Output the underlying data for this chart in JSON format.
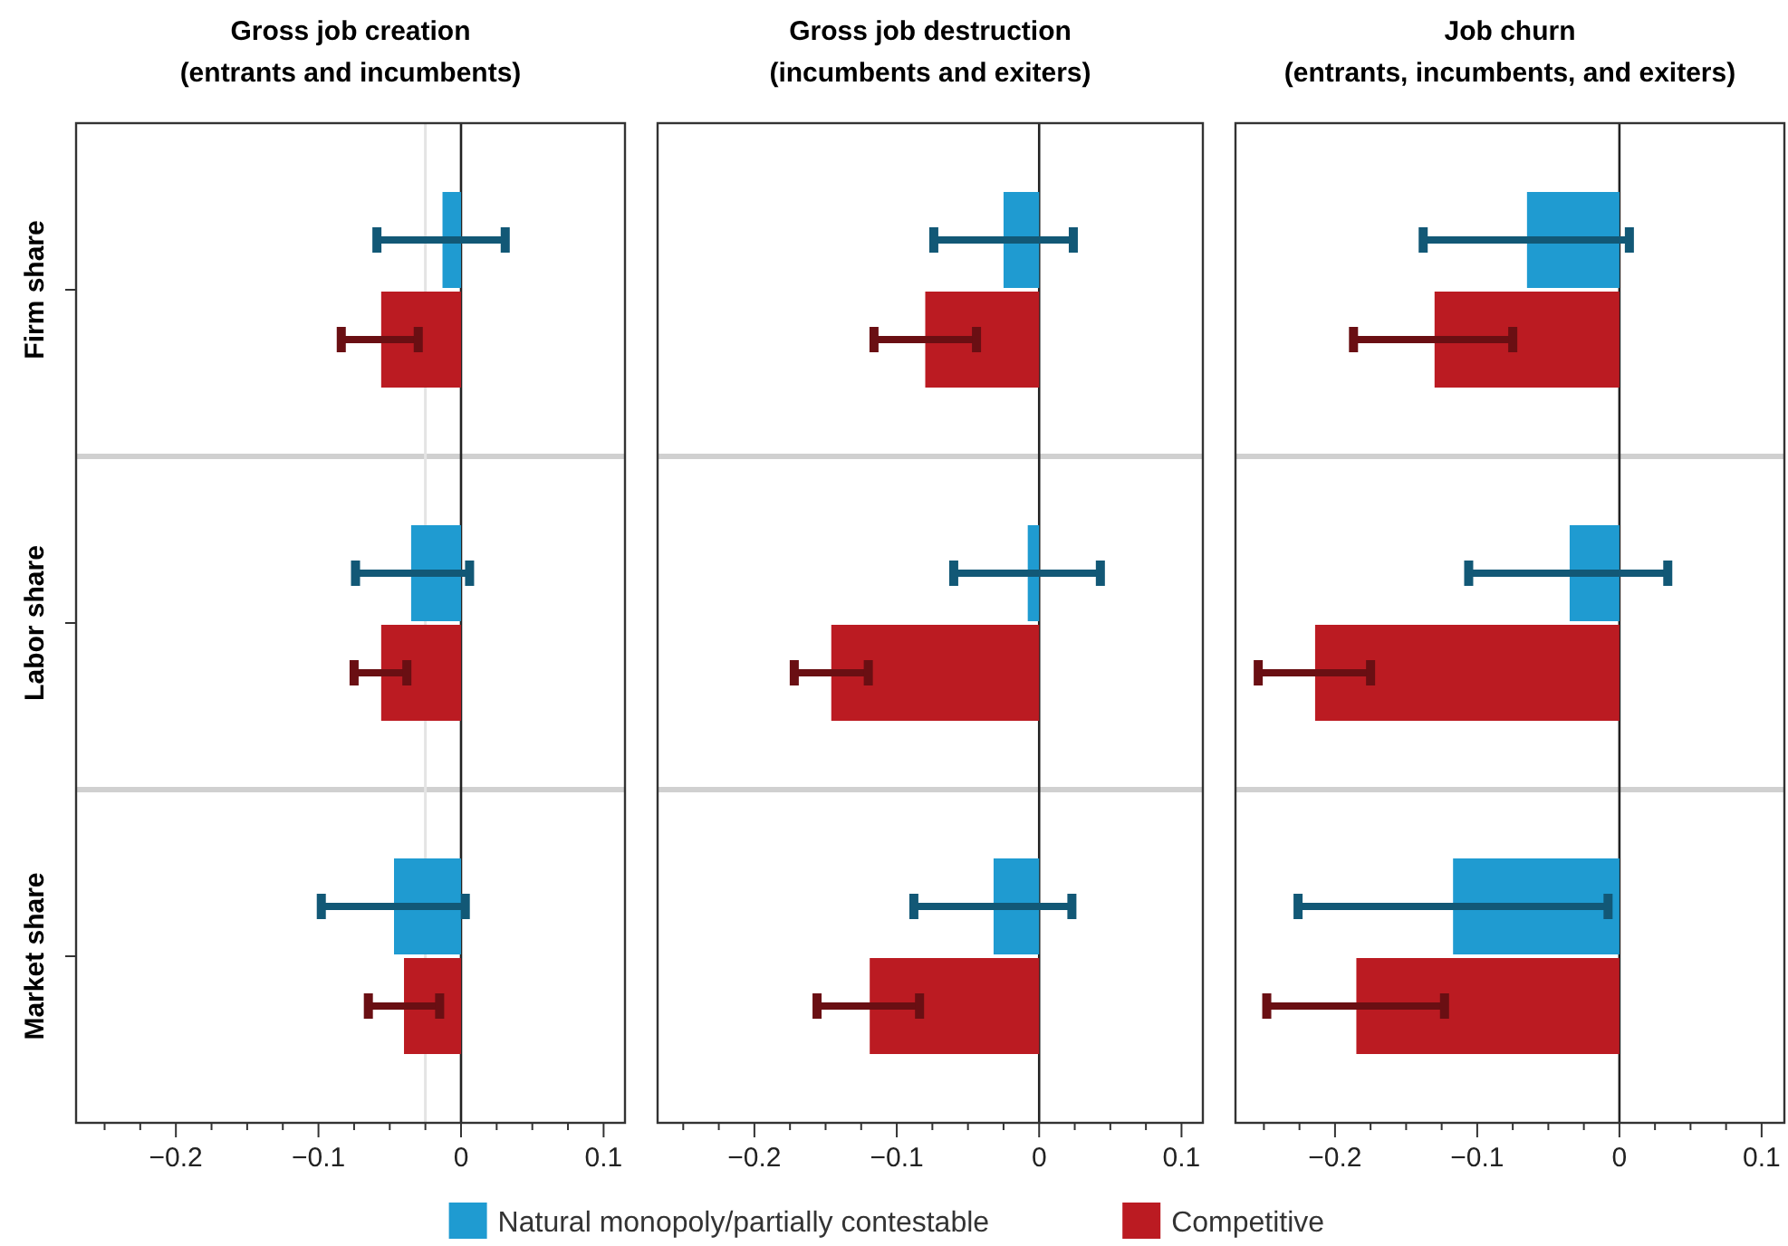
{
  "chart_data": [
    {
      "type": "bar",
      "orientation": "horizontal",
      "title": "Gross job creation",
      "subtitle": "(entrants and incumbents)",
      "categories": [
        "Firm share",
        "Labor share",
        "Market share"
      ],
      "xlim": [
        -0.27,
        0.115
      ],
      "xticks": [
        {
          "value": -0.25,
          "label": null
        },
        {
          "value": -0.225,
          "label": null
        },
        {
          "value": -0.2,
          "label": "−0.2"
        },
        {
          "value": -0.175,
          "label": null
        },
        {
          "value": -0.15,
          "label": null
        },
        {
          "value": -0.125,
          "label": null
        },
        {
          "value": -0.1,
          "label": "−0.1"
        },
        {
          "value": -0.075,
          "label": null
        },
        {
          "value": -0.05,
          "label": null
        },
        {
          "value": -0.025,
          "label": null
        },
        {
          "value": 0,
          "label": "0"
        },
        {
          "value": 0.025,
          "label": null
        },
        {
          "value": 0.05,
          "label": null
        },
        {
          "value": 0.075,
          "label": null
        },
        {
          "value": 0.1,
          "label": "0.1"
        }
      ],
      "grid": "y",
      "legend": "bottom",
      "ref_lines": [
        {
          "axis": "x",
          "value": -0.025,
          "color": "#e4e4e4"
        },
        {
          "axis": "x",
          "value": 0,
          "color": "#222222"
        }
      ],
      "series": [
        {
          "name": "Natural monopoly/partially contestable",
          "color": "#1f9bd1",
          "values": [
            -0.013,
            -0.035,
            -0.047
          ],
          "errors": [
            [
              -0.059,
              0.031
            ],
            [
              -0.074,
              0.006
            ],
            [
              -0.098,
              0.003
            ]
          ]
        },
        {
          "name": "Competitive",
          "color": "#bb1b22",
          "values": [
            -0.056,
            -0.056,
            -0.04
          ],
          "errors": [
            [
              -0.084,
              -0.03
            ],
            [
              -0.075,
              -0.038
            ],
            [
              -0.065,
              -0.015
            ]
          ]
        }
      ]
    },
    {
      "type": "bar",
      "orientation": "horizontal",
      "title": "Gross job destruction",
      "subtitle": "(incumbents and exiters)",
      "categories": [
        null,
        null,
        null
      ],
      "xlim": [
        -0.268,
        0.115
      ],
      "xticks": [
        {
          "value": -0.25,
          "label": null
        },
        {
          "value": -0.225,
          "label": null
        },
        {
          "value": -0.2,
          "label": "−0.2"
        },
        {
          "value": -0.175,
          "label": null
        },
        {
          "value": -0.15,
          "label": null
        },
        {
          "value": -0.125,
          "label": null
        },
        {
          "value": -0.1,
          "label": "−0.1"
        },
        {
          "value": -0.075,
          "label": null
        },
        {
          "value": -0.05,
          "label": null
        },
        {
          "value": -0.025,
          "label": null
        },
        {
          "value": 0,
          "label": "0"
        },
        {
          "value": 0.025,
          "label": null
        },
        {
          "value": 0.05,
          "label": null
        },
        {
          "value": 0.075,
          "label": null
        },
        {
          "value": 0.1,
          "label": "0.1"
        }
      ],
      "grid": "y",
      "tick_labels": "x",
      "ref_lines": [
        {
          "axis": "x",
          "value": 0,
          "color": "#222222"
        }
      ],
      "series": [
        {
          "color": "#1f9bd1",
          "values": [
            -0.025,
            -0.008,
            -0.032
          ],
          "errors": [
            [
              -0.074,
              0.024
            ],
            [
              -0.06,
              0.043
            ],
            [
              -0.088,
              0.023
            ]
          ]
        },
        {
          "color": "#bb1b22",
          "values": [
            -0.08,
            -0.146,
            -0.119
          ],
          "errors": [
            [
              -0.116,
              -0.044
            ],
            [
              -0.172,
              -0.12
            ],
            [
              -0.156,
              -0.084
            ]
          ]
        }
      ]
    },
    {
      "type": "bar",
      "orientation": "horizontal",
      "title": "Job churn",
      "subtitle": "(entrants, incumbents, and exiters)",
      "categories": [
        null,
        null,
        null
      ],
      "xlim": [
        -0.27,
        0.116
      ],
      "xticks": [
        {
          "value": -0.25,
          "label": null
        },
        {
          "value": -0.225,
          "label": null
        },
        {
          "value": -0.2,
          "label": "−0.2"
        },
        {
          "value": -0.175,
          "label": null
        },
        {
          "value": -0.15,
          "label": null
        },
        {
          "value": -0.125,
          "label": null
        },
        {
          "value": -0.1,
          "label": "−0.1"
        },
        {
          "value": -0.075,
          "label": null
        },
        {
          "value": -0.05,
          "label": null
        },
        {
          "value": -0.025,
          "label": null
        },
        {
          "value": 0,
          "label": "0"
        },
        {
          "value": 0.025,
          "label": null
        },
        {
          "value": 0.05,
          "label": null
        },
        {
          "value": 0.075,
          "label": null
        },
        {
          "value": 0.1,
          "label": "0.1"
        }
      ],
      "grid": "y",
      "tick_labels": "x",
      "ref_lines": [
        {
          "axis": "x",
          "value": 0,
          "color": "#222222"
        }
      ],
      "series": [
        {
          "color": "#1f9bd1",
          "values": [
            -0.065,
            -0.035,
            -0.117
          ],
          "errors": [
            [
              -0.138,
              0.007
            ],
            [
              -0.106,
              0.034
            ],
            [
              -0.226,
              -0.008
            ]
          ]
        },
        {
          "color": "#bb1b22",
          "values": [
            -0.13,
            -0.214,
            -0.185
          ],
          "errors": [
            [
              -0.187,
              -0.075
            ],
            [
              -0.254,
              -0.175
            ],
            [
              -0.248,
              -0.123
            ]
          ]
        }
      ]
    }
  ]
}
